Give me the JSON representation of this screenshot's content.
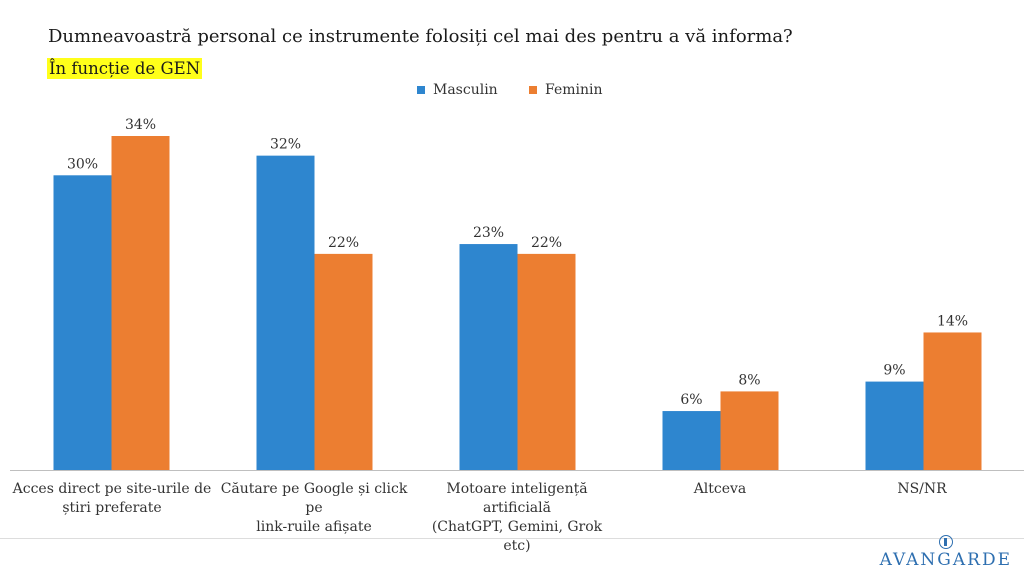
{
  "header": {
    "title": "Dumneavoastră personal ce instrumente folosiți cel mai des pentru a vă informa?",
    "subtitle": "În funcție de GEN"
  },
  "colors": {
    "masculin": "#2e86cf",
    "feminin": "#ec7e31",
    "axis": "#bfbfbf"
  },
  "chart_data": {
    "type": "bar",
    "title": "Dumneavoastră personal ce instrumente folosiți cel mai des pentru a vă informa?",
    "subtitle": "În funcție de GEN",
    "categories": [
      [
        "Acces direct pe site-urile de",
        "știri preferate"
      ],
      [
        "Căutare pe Google și click pe",
        "link-ruile afișate"
      ],
      [
        "Motoare inteligență artificială",
        "(ChatGPT, Gemini, Grok etc)"
      ],
      [
        "Altceva"
      ],
      [
        "NS/NR"
      ]
    ],
    "series": [
      {
        "name": "Masculin",
        "values": [
          30,
          32,
          23,
          6,
          9
        ],
        "labels": [
          "30%",
          "32%",
          "23%",
          "6%",
          "9%"
        ]
      },
      {
        "name": "Feminin",
        "values": [
          34,
          22,
          22,
          8,
          14
        ],
        "labels": [
          "34%",
          "22%",
          "22%",
          "8%",
          "14%"
        ]
      }
    ],
    "xlabel": "",
    "ylabel": "",
    "ylim": [
      0,
      34
    ],
    "legend": "top-center",
    "grid": false
  },
  "footer": {
    "logo_text": "AVANGARDE"
  }
}
